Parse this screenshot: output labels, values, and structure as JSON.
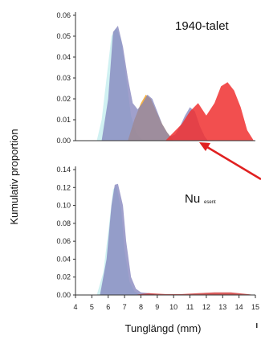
{
  "chart_data": [
    {
      "type": "area",
      "panel_label": "1940-talet",
      "ylim": [
        0,
        0.06
      ],
      "y_ticks": [
        "0.00",
        "0.01",
        "0.02",
        "0.03",
        "0.04",
        "0.05",
        "0.06"
      ],
      "series": [
        {
          "color": "#c8eef0",
          "x": [
            5.3,
            5.6,
            5.9,
            6.2,
            6.5,
            6.8,
            7.1,
            7.4,
            7.7,
            8.0,
            8.2
          ],
          "values": [
            0,
            0.01,
            0.03,
            0.05,
            0.054,
            0.048,
            0.03,
            0.012,
            0.004,
            0.001,
            0
          ]
        },
        {
          "color": "#f5a623",
          "x": [
            7.2,
            7.6,
            8.0,
            8.3,
            8.6,
            9.0,
            9.3,
            9.6,
            9.8,
            10.0
          ],
          "values": [
            0,
            0.01,
            0.018,
            0.022,
            0.02,
            0.013,
            0.008,
            0.004,
            0.002,
            0
          ]
        },
        {
          "color": "#8080bb",
          "x": [
            5.6,
            6.0,
            6.3,
            6.6,
            6.9,
            7.2,
            7.5,
            7.8,
            8.1,
            8.4,
            8.7,
            9.0,
            9.3,
            9.6,
            9.8,
            10.1,
            10.4,
            10.7,
            11.0,
            11.3,
            11.6,
            11.9,
            12.1
          ],
          "values": [
            0,
            0.02,
            0.052,
            0.055,
            0.045,
            0.03,
            0.018,
            0.015,
            0.018,
            0.022,
            0.02,
            0.014,
            0.008,
            0.004,
            0.002,
            0.003,
            0.007,
            0.012,
            0.016,
            0.014,
            0.007,
            0.002,
            0
          ]
        },
        {
          "color": "#f03030",
          "x": [
            9.5,
            10.0,
            10.5,
            11.0,
            11.5,
            12.0,
            12.5,
            12.9,
            13.3,
            13.7,
            14.1,
            14.5,
            14.9
          ],
          "values": [
            0,
            0.004,
            0.008,
            0.014,
            0.018,
            0.012,
            0.018,
            0.026,
            0.028,
            0.024,
            0.016,
            0.005,
            0
          ]
        }
      ]
    },
    {
      "type": "area",
      "panel_label": "Nu",
      "panel_sub": "esent",
      "ylim": [
        0,
        0.14
      ],
      "y_ticks": [
        "0.00",
        "0.02",
        "0.04",
        "0.06",
        "0.08",
        "0.10",
        "0.12",
        "0.14"
      ],
      "series": [
        {
          "color": "#c8eef0",
          "x": [
            5.3,
            5.7,
            6.0,
            6.3,
            6.5,
            6.8,
            7.0,
            7.3,
            7.6,
            8.0
          ],
          "values": [
            0,
            0.025,
            0.07,
            0.118,
            0.122,
            0.095,
            0.05,
            0.015,
            0.004,
            0
          ]
        },
        {
          "color": "#8080bb",
          "x": [
            5.5,
            5.9,
            6.2,
            6.4,
            6.6,
            6.9,
            7.1,
            7.4,
            7.7,
            8.0,
            8.5,
            9.0
          ],
          "values": [
            0,
            0.04,
            0.1,
            0.123,
            0.124,
            0.1,
            0.06,
            0.02,
            0.007,
            0.003,
            0.002,
            0
          ]
        },
        {
          "color": "#d04040",
          "x": [
            7.5,
            8.5,
            9.5,
            10.5,
            11.5,
            12.5,
            13.5,
            14.5,
            15.0
          ],
          "values": [
            0,
            0.002,
            0.001,
            0.001,
            0.002,
            0.003,
            0.003,
            0.001,
            0
          ]
        }
      ]
    }
  ],
  "x_ticks": [
    "4",
    "5",
    "6",
    "7",
    "8",
    "9",
    "10",
    "11",
    "12",
    "13",
    "14",
    "15"
  ],
  "xlabel": "Tunglängd (mm)",
  "ylabel": "Kumulativ proportion",
  "arrow_color": "#e02020"
}
